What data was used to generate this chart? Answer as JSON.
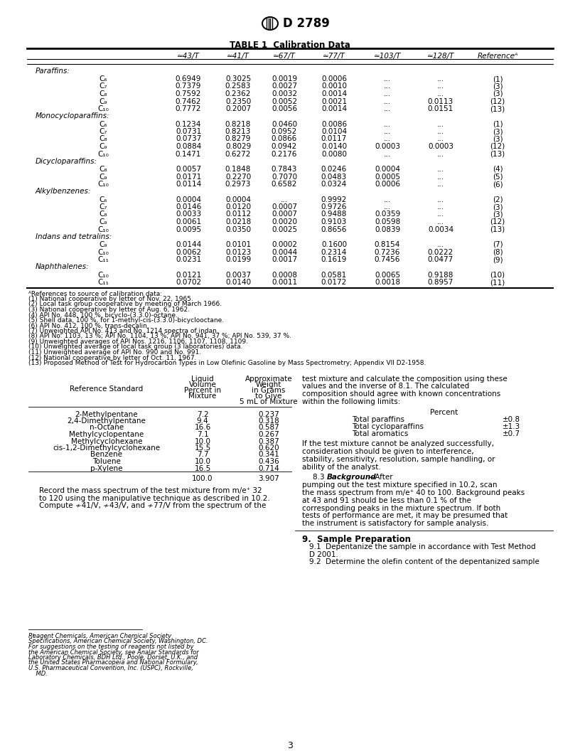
{
  "table_title": "TABLE 1  Calibration Data",
  "col_headers": [
    "≃43/T",
    "≃41/T",
    "≃67/T",
    "≃77/T",
    "≃103/T",
    "≃128/T",
    "Referenceᴬ"
  ],
  "sections": [
    {
      "name": "Paraffins:",
      "rows": [
        {
          "label": "C₆",
          "vals": [
            "0.6949",
            "0.3025",
            "0.0019",
            "0.0006",
            "...",
            "...",
            "(1)"
          ]
        },
        {
          "label": "C₇",
          "vals": [
            "0.7379",
            "0.2583",
            "0.0027",
            "0.0010",
            "...",
            "...",
            "(3)"
          ]
        },
        {
          "label": "C₈",
          "vals": [
            "0.7592",
            "0.2362",
            "0.0032",
            "0.0014",
            "...",
            "...",
            "(3)"
          ]
        },
        {
          "label": "C₉",
          "vals": [
            "0.7462",
            "0.2350",
            "0.0052",
            "0.0021",
            "...",
            "0.0113",
            "(12)"
          ]
        },
        {
          "label": "C₁₀",
          "vals": [
            "0.7772",
            "0.2007",
            "0.0056",
            "0.0014",
            "...",
            "0.0151",
            "(13)"
          ]
        }
      ]
    },
    {
      "name": "Monocycloparaffins:",
      "rows": [
        {
          "label": "C₆",
          "vals": [
            "0.1234",
            "0.8218",
            "0.0460",
            "0.0086",
            "...",
            "...",
            "(1)"
          ]
        },
        {
          "label": "C₇",
          "vals": [
            "0.0731",
            "0.8213",
            "0.0952",
            "0.0104",
            "...",
            "...",
            "(3)"
          ]
        },
        {
          "label": "C₈",
          "vals": [
            "0.0737",
            "0.8279",
            "0.0866",
            "0.0117",
            "...",
            "...",
            "(3)"
          ]
        },
        {
          "label": "C₉",
          "vals": [
            "0.0884",
            "0.8029",
            "0.0942",
            "0.0140",
            "0.0003",
            "0.0003",
            "(12)"
          ]
        },
        {
          "label": "C₁₀",
          "vals": [
            "0.1471",
            "0.6272",
            "0.2176",
            "0.0080",
            "...",
            "...",
            "(13)"
          ]
        }
      ]
    },
    {
      "name": "Dicycloparaffins:",
      "rows": [
        {
          "label": "C₈",
          "vals": [
            "0.0057",
            "0.1848",
            "0.7843",
            "0.0246",
            "0.0004",
            "...",
            "(4)"
          ]
        },
        {
          "label": "C₉",
          "vals": [
            "0.0171",
            "0.2270",
            "0.7070",
            "0.0483",
            "0.0005",
            "...",
            "(5)"
          ]
        },
        {
          "label": "C₁₀",
          "vals": [
            "0.0114",
            "0.2973",
            "0.6582",
            "0.0324",
            "0.0006",
            "...",
            "(6)"
          ]
        }
      ]
    },
    {
      "name": "Alkylbenzenes:",
      "rows": [
        {
          "label": "C₆",
          "vals": [
            "0.0004",
            "0.0004",
            "...",
            "0.9992",
            "...",
            "...",
            "(2)"
          ]
        },
        {
          "label": "C₇",
          "vals": [
            "0.0146",
            "0.0120",
            "0.0007",
            "0.9726",
            "...",
            "...",
            "(3)"
          ]
        },
        {
          "label": "C₈",
          "vals": [
            "0.0033",
            "0.0112",
            "0.0007",
            "0.9488",
            "0.0359",
            "...",
            "(3)"
          ]
        },
        {
          "label": "C₉",
          "vals": [
            "0.0061",
            "0.0218",
            "0.0020",
            "0.9103",
            "0.0598",
            "...",
            "(12)"
          ]
        },
        {
          "label": "C₁₀",
          "vals": [
            "0.0095",
            "0.0350",
            "0.0025",
            "0.8656",
            "0.0839",
            "0.0034",
            "(13)"
          ]
        }
      ]
    },
    {
      "name": "Indans and tetralins:",
      "rows": [
        {
          "label": "C₉",
          "vals": [
            "0.0144",
            "0.0101",
            "0.0002",
            "0.1600",
            "0.8154",
            "...",
            "(7)"
          ]
        },
        {
          "label": "C₁₀",
          "vals": [
            "0.0062",
            "0.0123",
            "0.0044",
            "0.2314",
            "0.7236",
            "0.0222",
            "(8)"
          ]
        },
        {
          "label": "C₁₁",
          "vals": [
            "0.0231",
            "0.0199",
            "0.0017",
            "0.1619",
            "0.7456",
            "0.0477",
            "(9)"
          ]
        }
      ]
    },
    {
      "name": "Naphthalenes:",
      "rows": [
        {
          "label": "C₁₀",
          "vals": [
            "0.0121",
            "0.0037",
            "0.0008",
            "0.0581",
            "0.0065",
            "0.9188",
            "(10)"
          ]
        },
        {
          "label": "C₁₁",
          "vals": [
            "0.0702",
            "0.0140",
            "0.0011",
            "0.0172",
            "0.0018",
            "0.8957",
            "(11)"
          ]
        }
      ]
    }
  ],
  "footnotes": [
    "ᴬReferences to source of calibration data:",
    "(1) National cooperative by letter of Nov. 22, 1965.",
    "(2) Local task group cooperative by meeting of March 1966.",
    "(3) National cooperative by letter of Aug. 6, 1962.",
    "(4) API No. 448, 100 %, bicyclo-(3.3.0)-octane.",
    "(5) Shell data, 100 %, for 1-methyl-cis-(3.3.0)-bicyclooctane.",
    "(6) API No. 412, 100 %, trans-decalin.",
    "(7) Unweighted API No. 413 and No. 1214 spectra of indan.",
    "(8) API No. 1103, 13 %; API No. 1104, 13 %; API No. 941, 37 %; API No. 539, 37 %.",
    "(9) Unweighted averages of API Nos. 1216, 1106, 1107, 1108, 1109.",
    "(10) Unweighted average of local task group (3 laboratories) data.",
    "(11) Unweighted average of API No. 990 and No. 991.",
    "(12) National cooperative by letter of Oct. 11, 1967.",
    "(13) Proposed Method of Test for Hydrocarbon Types in Low Olefinic Gasoline by Mass Spectrometry; Appendix VII D2-1958."
  ],
  "ref_table_rows": [
    [
      "2-Methylpentane",
      "7.2",
      "0.237"
    ],
    [
      "2,4-Dimethylpentane",
      "9.4",
      "0.318"
    ],
    [
      "n-Octane",
      "16.6",
      "0.587"
    ],
    [
      "Methylcyclopentane",
      "7.1",
      "0.267"
    ],
    [
      "Methylcyclohexane",
      "10.0",
      "0.387"
    ],
    [
      "cis-1,2-Dimethylcyclohexane",
      "15.5",
      "0.620"
    ],
    [
      "Benzene",
      "7.7",
      "0.341"
    ],
    [
      "Toluene",
      "10.0",
      "0.436"
    ],
    [
      "p-Xylene",
      "16.5",
      "0.714"
    ]
  ],
  "ref_table_total": [
    "100.0",
    "3.907"
  ],
  "limits": [
    [
      "Total paraffins",
      "±0.8"
    ],
    [
      "Total cycloparaffins",
      "±1.3"
    ],
    [
      "Total aromatics",
      "±0.7"
    ]
  ],
  "left_bottom_text": [
    "Record the mass spectrum of the test mixture from m/e⁺ 32",
    "to 120 using the manipulative technique as described in 10.2.",
    "Compute ≁41/V, ≁43/V, and ≁77/V from the spectrum of the"
  ],
  "right_para1": "test mixture and calculate the composition using these values and the inverse of 8.1. The calculated composition should agree with known concentrations within the following limits:",
  "right_para2": "If the test mixture cannot be analyzed successfully, consideration should be given to interference, stability, sensitivity, resolution, sample handling, or ability of the analyst.",
  "right_para3_intro": "8.3 ",
  "right_para3_bold_italic": "Background",
  "right_para3_rest": "—After pumping out the test mixture specified in 10.2, scan the mass spectrum from m/e⁺ 40 to 100. Background peaks at 43 and 91 should be less than 0.1 % of the corresponding peaks in the mixture spectrum. If both tests of performance are met, it may be presumed that the instrument is satisfactory for sample analysis.",
  "section9_title": "9.  Sample Preparation",
  "section9_para1": "9.1  Depentanize the sample in accordance with Test Method D 2001.",
  "section9_para2": "9.2  Determine the olefin content of the depentanized sample",
  "footnote_bottom_super": "5",
  "footnote_bottom_text": "Reagent Chemicals, American Chemical Society Specifications, American Chemical Society, Washington, DC. For suggestions on the testing of reagents not listed by the American Chemical Society, see Analar Standards for Laboratory Chemicals, BDH Ltd., Poole, Dorset, U.K., and the United States Pharmacopeia and National Formulary, U.S. Pharmaceutical Convention, Inc. (USPC), Rockville, MD.",
  "page_number": "3"
}
